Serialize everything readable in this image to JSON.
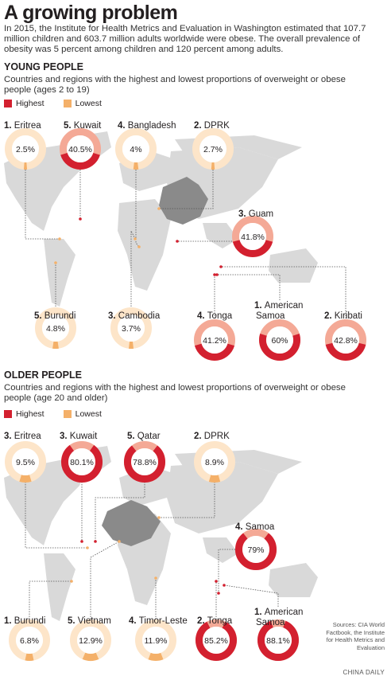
{
  "title": "A growing problem",
  "intro": "In 2015, the Institute for Health Metrics and Evaluation in Washington estimated that 107.7 million children and 603.7 million adults worldwide were obese. The overall prevalence of obesity was 5 percent among children and 120 percent among adults.",
  "legend": {
    "highest": "Highest",
    "lowest": "Lowest"
  },
  "colors": {
    "highest": "#d3202f",
    "highest_light": "#f4a996",
    "lowest": "#f4b069",
    "lowest_light": "#fde5c9",
    "china": "#8a8a8a",
    "land": "#d9d9d9"
  },
  "source": "Sources: CIA World Factbook, the Institute for Health Metrics and Evaluation",
  "credit": "CHINA DAILY",
  "chart_data": [
    {
      "type": "pie",
      "title": "YOUNG PEOPLE",
      "subtitle": "Countries and regions with the highest and lowest proportions of overweight or obese people (ages 2 to 19)",
      "items": [
        {
          "rank": "1.",
          "name": "Eritrea",
          "value": 2.5,
          "label": "2.5%",
          "group": "lowest"
        },
        {
          "rank": "5.",
          "name": "Kuwait",
          "value": 40.5,
          "label": "40.5%",
          "group": "highest"
        },
        {
          "rank": "4.",
          "name": "Bangladesh",
          "value": 4,
          "label": "4%",
          "group": "lowest"
        },
        {
          "rank": "2.",
          "name": "DPRK",
          "value": 2.7,
          "label": "2.7%",
          "group": "lowest"
        },
        {
          "rank": "3.",
          "name": "Guam",
          "value": 41.8,
          "label": "41.8%",
          "group": "highest"
        },
        {
          "rank": "5.",
          "name": "Burundi",
          "value": 4.8,
          "label": "4.8%",
          "group": "lowest"
        },
        {
          "rank": "3.",
          "name": "Cambodia",
          "value": 3.7,
          "label": "3.7%",
          "group": "lowest"
        },
        {
          "rank": "4.",
          "name": "Tonga",
          "value": 41.2,
          "label": "41.2%",
          "group": "highest"
        },
        {
          "rank": "1.",
          "name": "American Samoa",
          "value": 60,
          "label": "60%",
          "group": "highest"
        },
        {
          "rank": "2.",
          "name": "Kiribati",
          "value": 42.8,
          "label": "42.8%",
          "group": "highest"
        }
      ]
    },
    {
      "type": "pie",
      "title": "OLDER PEOPLE",
      "subtitle": "Countries and regions with the highest and lowest proportions of overweight or obese people (age 20 and older)",
      "items": [
        {
          "rank": "3.",
          "name": "Eritrea",
          "value": 9.5,
          "label": "9.5%",
          "group": "lowest"
        },
        {
          "rank": "3.",
          "name": "Kuwait",
          "value": 80.1,
          "label": "80.1%",
          "group": "highest"
        },
        {
          "rank": "5.",
          "name": "Qatar",
          "value": 78.8,
          "label": "78.8%",
          "group": "highest"
        },
        {
          "rank": "2.",
          "name": "DPRK",
          "value": 8.9,
          "label": "8.9%",
          "group": "lowest"
        },
        {
          "rank": "4.",
          "name": "Samoa",
          "value": 79,
          "label": "79%",
          "group": "highest"
        },
        {
          "rank": "1.",
          "name": "Burundi",
          "value": 6.8,
          "label": "6.8%",
          "group": "lowest"
        },
        {
          "rank": "5.",
          "name": "Vietnam",
          "value": 12.9,
          "label": "12.9%",
          "group": "lowest"
        },
        {
          "rank": "4.",
          "name": "Timor-Leste",
          "value": 11.9,
          "label": "11.9%",
          "group": "lowest"
        },
        {
          "rank": "2.",
          "name": "Tonga",
          "value": 85.2,
          "label": "85.2%",
          "group": "highest"
        },
        {
          "rank": "1.",
          "name": "American Samoa",
          "value": 88.1,
          "label": "88.1%",
          "group": "highest"
        }
      ]
    }
  ]
}
